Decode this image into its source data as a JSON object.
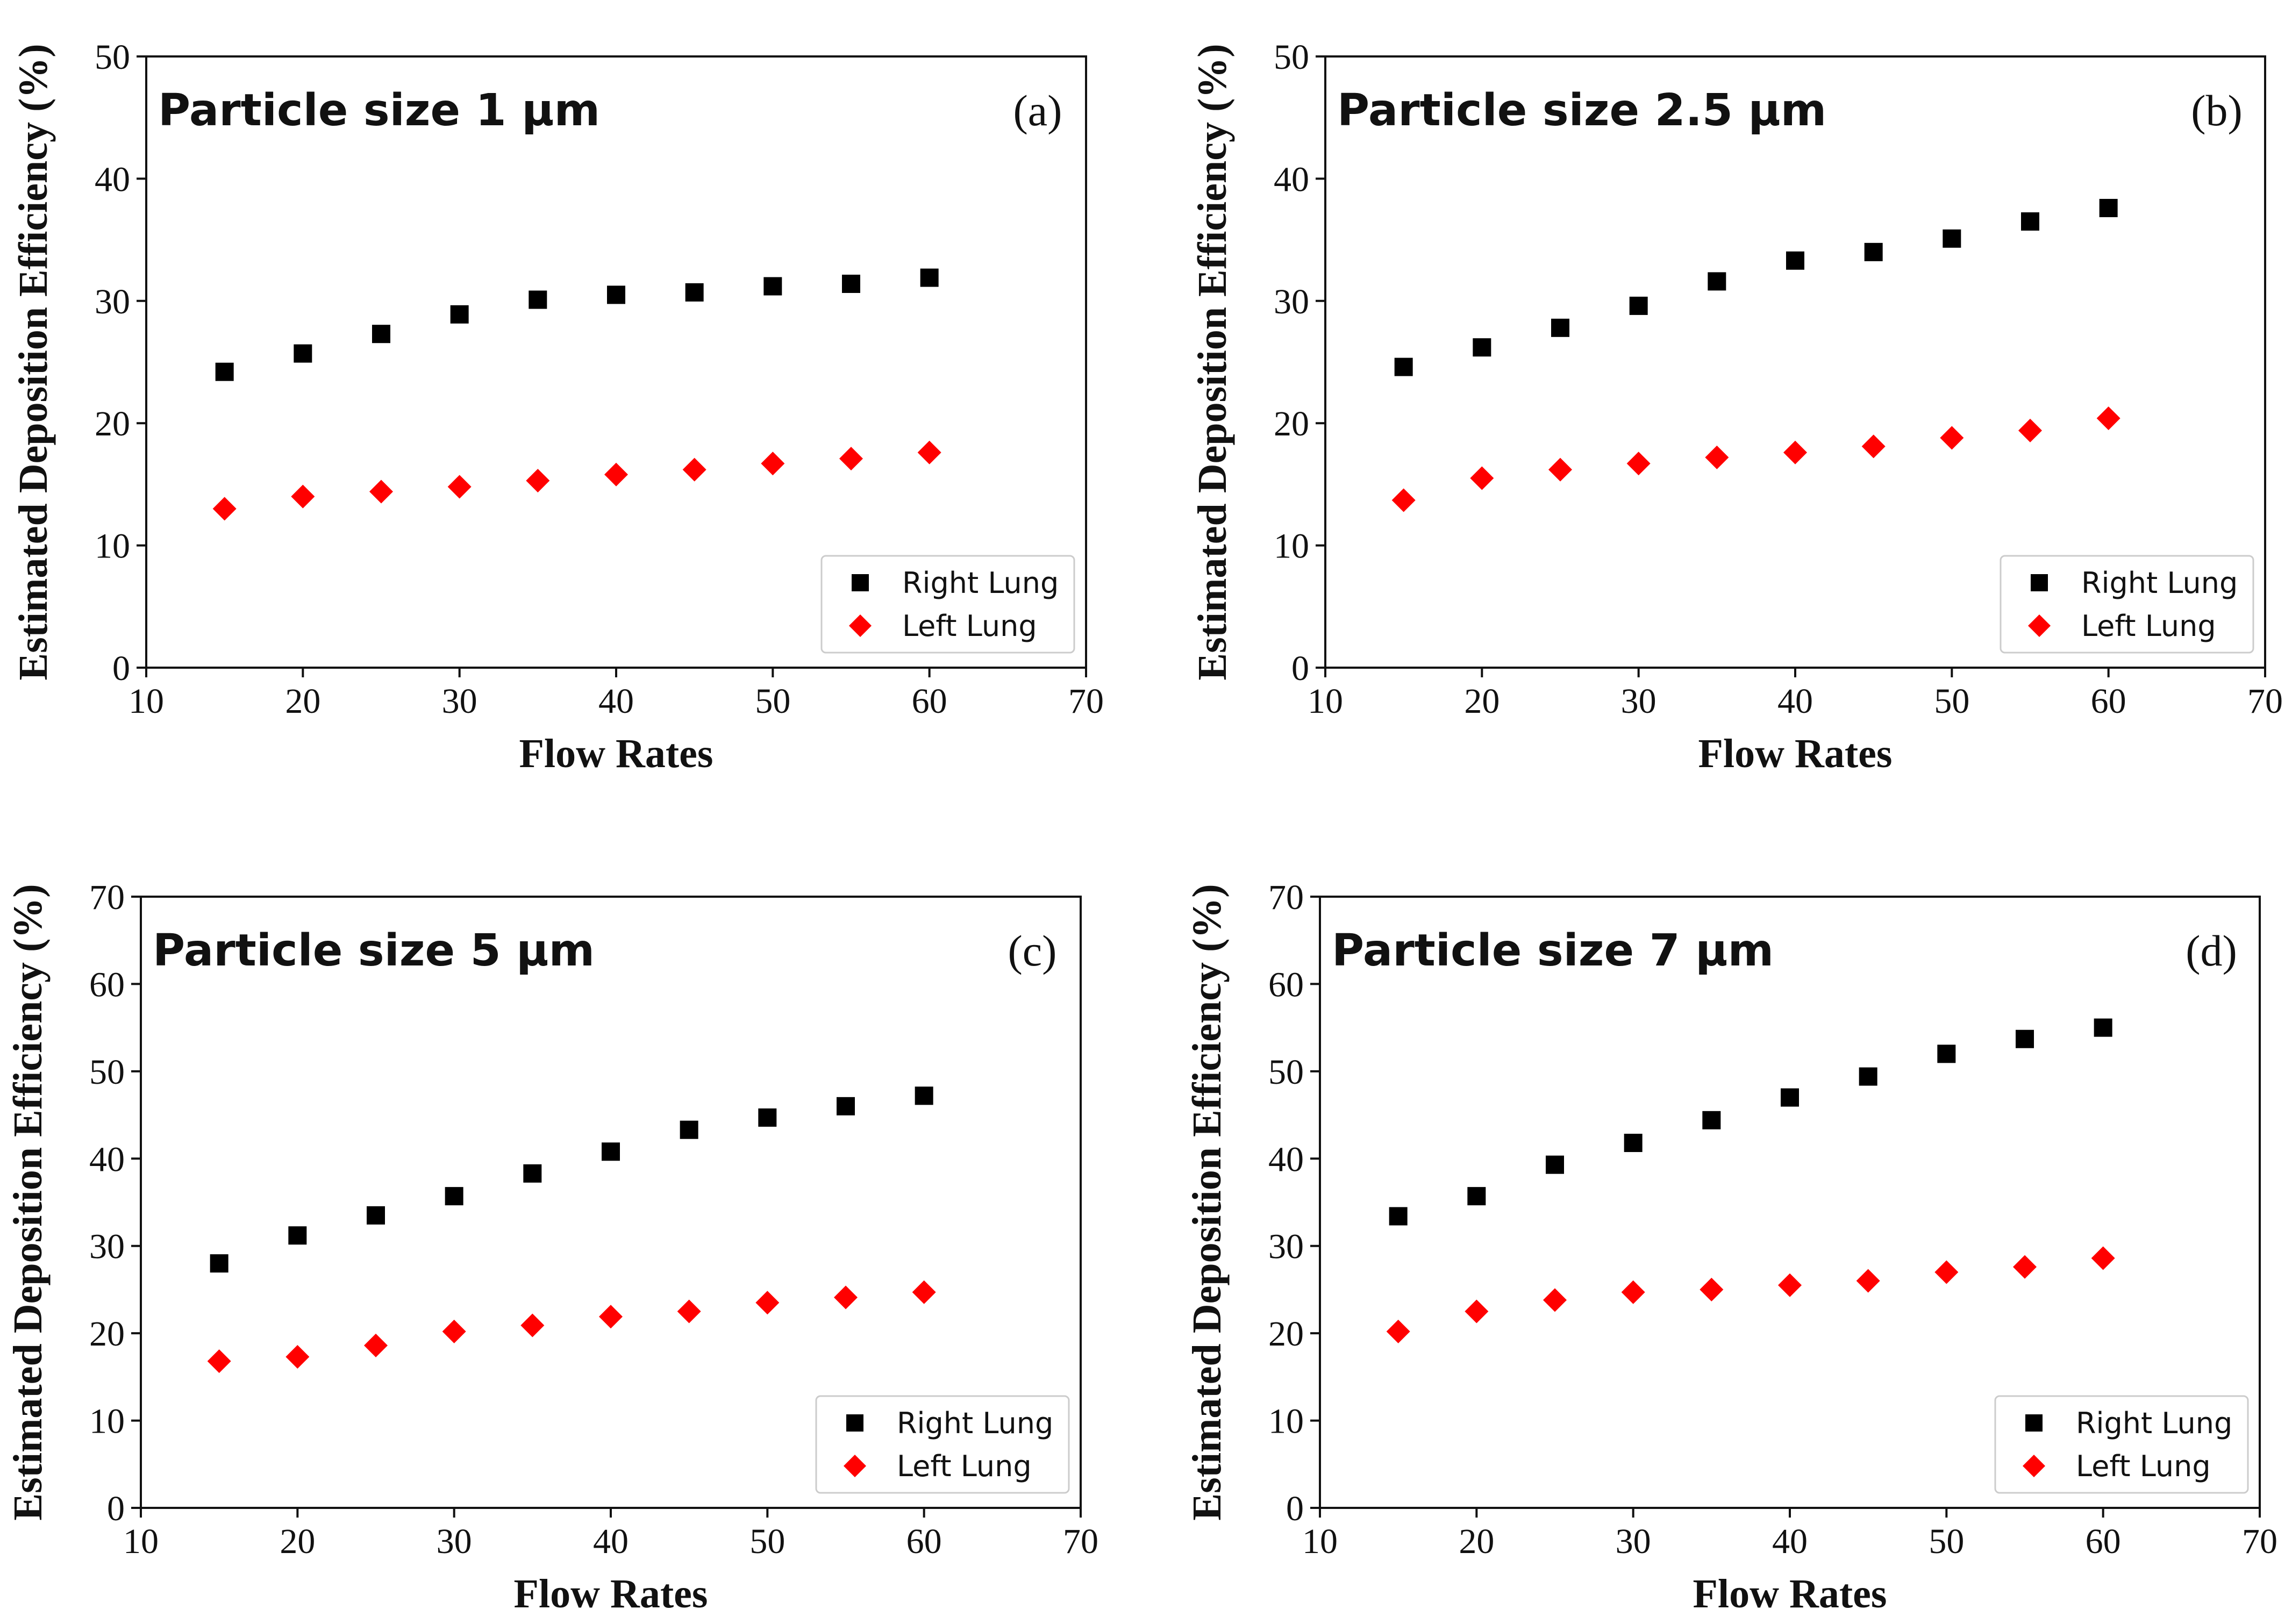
{
  "figure": {
    "background": "#ffffff"
  },
  "colors": {
    "right": "#000000",
    "left": "#ff0000",
    "axis": "#111111",
    "legend_border": "#cccccc"
  },
  "chart_data": [
    {
      "type": "scatter",
      "panel": "(a)",
      "title": "Particle size 1 μm",
      "xlabel": "Flow Rates",
      "ylabel": "Estimated Deposition Efficiency (%)",
      "xlim": [
        10,
        70
      ],
      "ylim": [
        0,
        50
      ],
      "xticks": [
        10,
        20,
        30,
        40,
        50,
        60,
        70
      ],
      "yticks": [
        0,
        10,
        20,
        30,
        40,
        50
      ],
      "grid": false,
      "legend_position": "lower-right",
      "x": [
        15,
        20,
        25,
        30,
        35,
        40,
        45,
        50,
        55,
        60
      ],
      "series": [
        {
          "name": "Right Lung",
          "marker": "square",
          "color": "#000000",
          "values": [
            24.2,
            25.7,
            27.3,
            28.9,
            30.1,
            30.5,
            30.7,
            31.2,
            31.4,
            31.9
          ]
        },
        {
          "name": "Left Lung",
          "marker": "diamond",
          "color": "#ff0000",
          "values": [
            13.0,
            14.0,
            14.4,
            14.8,
            15.3,
            15.8,
            16.2,
            16.7,
            17.1,
            17.6
          ]
        }
      ]
    },
    {
      "type": "scatter",
      "panel": "(b)",
      "title": "Particle size 2.5 μm",
      "xlabel": "Flow Rates",
      "ylabel": "Estimated Deposition Efficiency (%)",
      "xlim": [
        10,
        70
      ],
      "ylim": [
        0,
        50
      ],
      "xticks": [
        10,
        20,
        30,
        40,
        50,
        60,
        70
      ],
      "yticks": [
        0,
        10,
        20,
        30,
        40,
        50
      ],
      "grid": false,
      "legend_position": "lower-right",
      "x": [
        15,
        20,
        25,
        30,
        35,
        40,
        45,
        50,
        55,
        60
      ],
      "series": [
        {
          "name": "Right Lung",
          "marker": "square",
          "color": "#000000",
          "values": [
            24.6,
            26.2,
            27.8,
            29.6,
            31.6,
            33.3,
            34.0,
            35.1,
            36.5,
            37.6
          ]
        },
        {
          "name": "Left Lung",
          "marker": "diamond",
          "color": "#ff0000",
          "values": [
            13.7,
            15.5,
            16.2,
            16.7,
            17.2,
            17.6,
            18.1,
            18.8,
            19.4,
            20.4
          ]
        }
      ]
    },
    {
      "type": "scatter",
      "panel": "(c)",
      "title": "Particle size 5 μm",
      "xlabel": "Flow Rates",
      "ylabel": "Estimated Deposition Efficiency (%)",
      "xlim": [
        10,
        70
      ],
      "ylim": [
        0,
        70
      ],
      "xticks": [
        10,
        20,
        30,
        40,
        50,
        60,
        70
      ],
      "yticks": [
        0,
        10,
        20,
        30,
        40,
        50,
        60,
        70
      ],
      "grid": false,
      "legend_position": "lower-right",
      "x": [
        15,
        20,
        25,
        30,
        35,
        40,
        45,
        50,
        55,
        60
      ],
      "series": [
        {
          "name": "Right Lung",
          "marker": "square",
          "color": "#000000",
          "values": [
            28.0,
            31.2,
            33.5,
            35.7,
            38.3,
            40.8,
            43.3,
            44.7,
            46.0,
            47.2
          ]
        },
        {
          "name": "Left Lung",
          "marker": "diamond",
          "color": "#ff0000",
          "values": [
            16.8,
            17.3,
            18.6,
            20.2,
            20.9,
            21.9,
            22.5,
            23.5,
            24.1,
            24.7
          ]
        }
      ]
    },
    {
      "type": "scatter",
      "panel": "(d)",
      "title": "Particle size 7 μm",
      "xlabel": "Flow Rates",
      "ylabel": "Estimated Deposition Efficiency (%)",
      "xlim": [
        10,
        70
      ],
      "ylim": [
        0,
        70
      ],
      "xticks": [
        10,
        20,
        30,
        40,
        50,
        60,
        70
      ],
      "yticks": [
        0,
        10,
        20,
        30,
        40,
        50,
        60,
        70
      ],
      "grid": false,
      "legend_position": "lower-right",
      "x": [
        15,
        20,
        25,
        30,
        35,
        40,
        45,
        50,
        55,
        60
      ],
      "series": [
        {
          "name": "Right Lung",
          "marker": "square",
          "color": "#000000",
          "values": [
            33.4,
            35.7,
            39.3,
            41.8,
            44.4,
            47.0,
            49.4,
            52.0,
            53.7,
            55.0
          ]
        },
        {
          "name": "Left Lung",
          "marker": "diamond",
          "color": "#ff0000",
          "values": [
            20.2,
            22.5,
            23.8,
            24.7,
            25.0,
            25.5,
            26.0,
            27.0,
            27.6,
            28.6
          ]
        }
      ]
    }
  ]
}
